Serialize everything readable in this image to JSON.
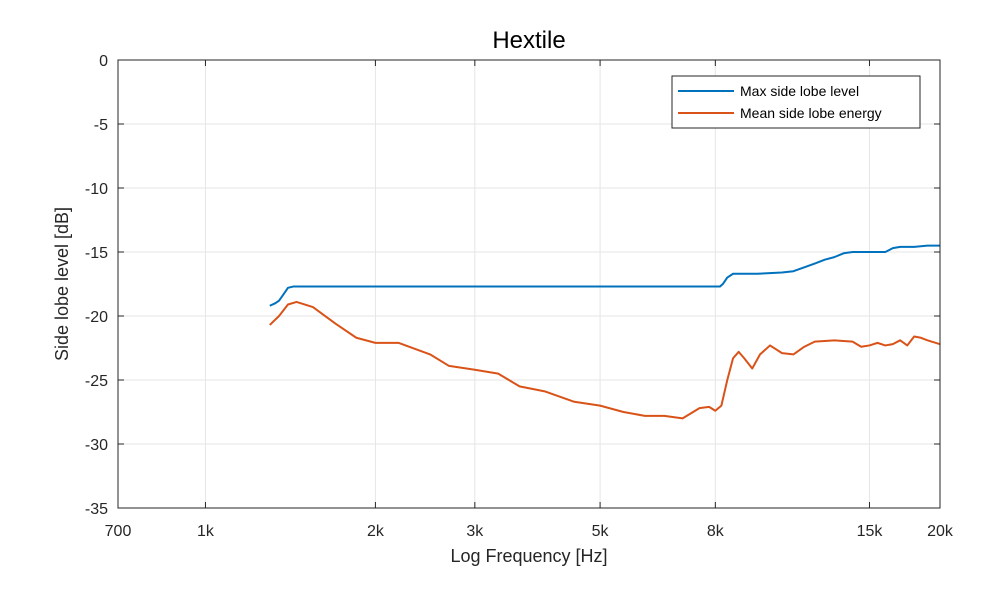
{
  "chart_data": {
    "type": "line",
    "title": "Hextile",
    "xlabel": "Log Frequency [Hz]",
    "ylabel": "Side lobe level [dB]",
    "x_scale": "log",
    "xlim": [
      700,
      20000
    ],
    "ylim": [
      -35,
      0
    ],
    "grid": true,
    "legend_position": "top-right",
    "x_ticks": [
      {
        "value": 700,
        "label": "700"
      },
      {
        "value": 1000,
        "label": "1k"
      },
      {
        "value": 2000,
        "label": "2k"
      },
      {
        "value": 3000,
        "label": "3k"
      },
      {
        "value": 5000,
        "label": "5k"
      },
      {
        "value": 8000,
        "label": "8k"
      },
      {
        "value": 15000,
        "label": "15k"
      },
      {
        "value": 20000,
        "label": "20k"
      }
    ],
    "y_ticks": [
      {
        "value": 0,
        "label": "0"
      },
      {
        "value": -5,
        "label": "-5"
      },
      {
        "value": -10,
        "label": "-10"
      },
      {
        "value": -15,
        "label": "-15"
      },
      {
        "value": -20,
        "label": "-20"
      },
      {
        "value": -25,
        "label": "-25"
      },
      {
        "value": -30,
        "label": "-30"
      },
      {
        "value": -35,
        "label": "-35"
      }
    ],
    "series": [
      {
        "name": "Max side lobe level",
        "color": "#0072BD",
        "x": [
          1300,
          1330,
          1350,
          1370,
          1385,
          1400,
          1430,
          1500,
          2000,
          3000,
          5000,
          7000,
          8150,
          8250,
          8400,
          8600,
          9000,
          9500,
          10500,
          11000,
          11500,
          12000,
          12500,
          13000,
          13500,
          14000,
          15000,
          16000,
          16500,
          17000,
          18000,
          19000,
          20000
        ],
        "y": [
          -19.2,
          -19.0,
          -18.8,
          -18.4,
          -18.1,
          -17.8,
          -17.7,
          -17.7,
          -17.7,
          -17.7,
          -17.7,
          -17.7,
          -17.7,
          -17.5,
          -17.0,
          -16.7,
          -16.7,
          -16.7,
          -16.6,
          -16.5,
          -16.2,
          -15.9,
          -15.6,
          -15.4,
          -15.1,
          -15.0,
          -15.0,
          -15.0,
          -14.7,
          -14.6,
          -14.6,
          -14.5,
          -14.5
        ]
      },
      {
        "name": "Mean side lobe energy",
        "color": "#D95319",
        "x": [
          1300,
          1350,
          1400,
          1450,
          1550,
          1700,
          1850,
          2000,
          2200,
          2500,
          2700,
          3000,
          3300,
          3600,
          4000,
          4500,
          5000,
          5500,
          6000,
          6500,
          7000,
          7500,
          7800,
          8000,
          8200,
          8400,
          8600,
          8800,
          9000,
          9300,
          9600,
          10000,
          10500,
          11000,
          11500,
          12000,
          13000,
          14000,
          14500,
          15000,
          15500,
          16000,
          16500,
          17000,
          17500,
          18000,
          18500,
          19000,
          20000
        ],
        "y": [
          -20.7,
          -20.0,
          -19.1,
          -18.9,
          -19.3,
          -20.6,
          -21.7,
          -22.1,
          -22.1,
          -23.0,
          -23.9,
          -24.2,
          -24.5,
          -25.5,
          -25.9,
          -26.7,
          -27.0,
          -27.5,
          -27.8,
          -27.8,
          -28.0,
          -27.2,
          -27.1,
          -27.4,
          -27.0,
          -25.0,
          -23.3,
          -22.8,
          -23.3,
          -24.1,
          -23.0,
          -22.3,
          -22.9,
          -23.0,
          -22.4,
          -22.0,
          -21.9,
          -22.0,
          -22.4,
          -22.3,
          -22.1,
          -22.3,
          -22.2,
          -21.9,
          -22.3,
          -21.6,
          -21.7,
          -21.9,
          -22.2
        ]
      }
    ]
  }
}
